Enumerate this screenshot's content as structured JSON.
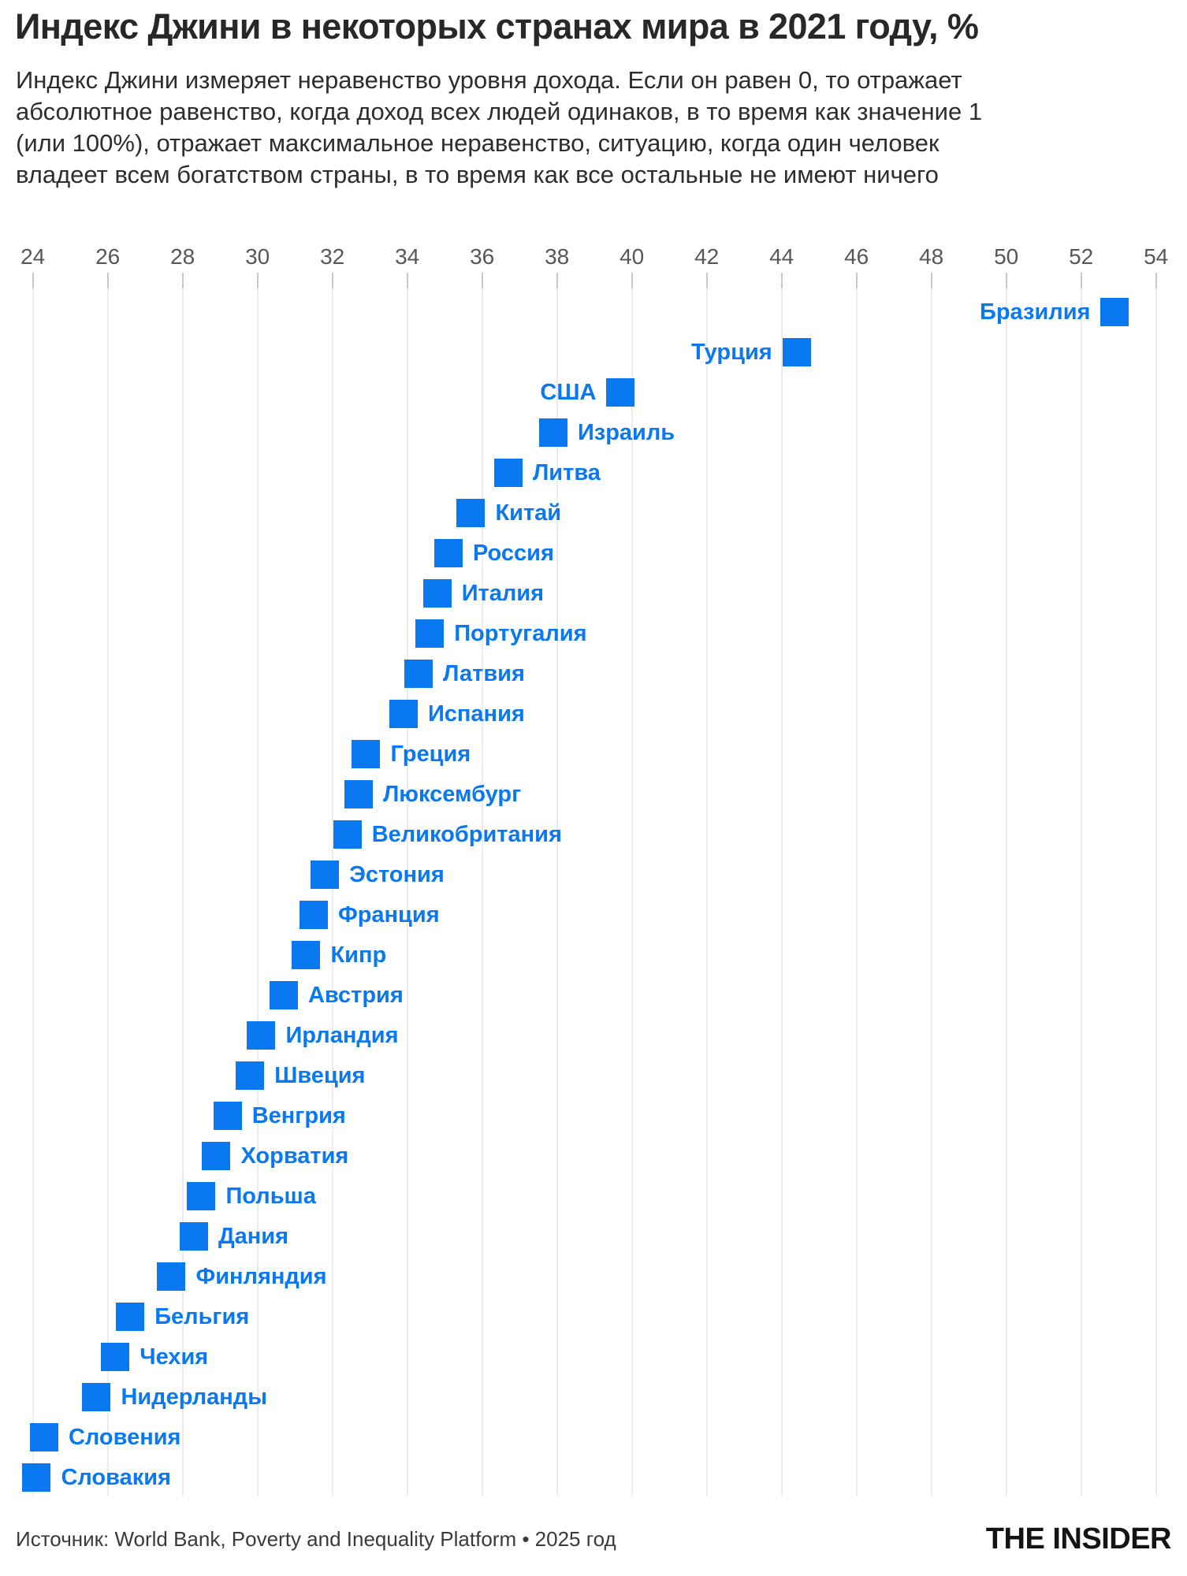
{
  "title": "Индекс Джини в некоторых странах мира в 2021 году, %",
  "subtitle_lines": [
    "Индекс Джини измеряет неравенство уровня дохода. Если он равен 0, то отражает",
    "абсолютное равенство, когда доход всех людей одинаков, в то время как значение 1",
    "(или 100%), отражает максимальное неравенство, ситуацию, когда один человек",
    "владеет всем богатством страны, в то время как все остальные не имеют ничего"
  ],
  "footer": {
    "source": "Источник: World Bank, Poverty and Inequality Platform • 2025 год",
    "logo": "THE INSIDER"
  },
  "colors": {
    "accent": "#0a78f0",
    "grid": "#ececec",
    "tick": "#c9c9c9",
    "tick_label": "#575757",
    "title": "#282828",
    "text": "#2d2d2d"
  },
  "chart_data": {
    "type": "scatter",
    "title": "Индекс Джини в некоторых странах мира в 2021 году, %",
    "xlim": [
      24,
      54
    ],
    "x_ticks": [
      24,
      26,
      28,
      30,
      32,
      34,
      36,
      38,
      40,
      42,
      44,
      46,
      48,
      50,
      52,
      54
    ],
    "grid": true,
    "marker": "square",
    "legend": "none",
    "points": [
      {
        "country": "Бразилия",
        "value": 52.9,
        "label_side": "left"
      },
      {
        "country": "Турция",
        "value": 44.4,
        "label_side": "left"
      },
      {
        "country": "США",
        "value": 39.7,
        "label_side": "left"
      },
      {
        "country": "Израиль",
        "value": 37.9,
        "label_side": "right"
      },
      {
        "country": "Литва",
        "value": 36.7,
        "label_side": "right"
      },
      {
        "country": "Китай",
        "value": 35.7,
        "label_side": "right"
      },
      {
        "country": "Россия",
        "value": 35.1,
        "label_side": "right"
      },
      {
        "country": "Италия",
        "value": 34.8,
        "label_side": "right"
      },
      {
        "country": "Португалия",
        "value": 34.6,
        "label_side": "right"
      },
      {
        "country": "Латвия",
        "value": 34.3,
        "label_side": "right"
      },
      {
        "country": "Испания",
        "value": 33.9,
        "label_side": "right"
      },
      {
        "country": "Греция",
        "value": 32.9,
        "label_side": "right"
      },
      {
        "country": "Люксембург",
        "value": 32.7,
        "label_side": "right"
      },
      {
        "country": "Великобритания",
        "value": 32.4,
        "label_side": "right"
      },
      {
        "country": "Эстония",
        "value": 31.8,
        "label_side": "right"
      },
      {
        "country": "Франция",
        "value": 31.5,
        "label_side": "right"
      },
      {
        "country": "Кипр",
        "value": 31.3,
        "label_side": "right"
      },
      {
        "country": "Австрия",
        "value": 30.7,
        "label_side": "right"
      },
      {
        "country": "Ирландия",
        "value": 30.1,
        "label_side": "right"
      },
      {
        "country": "Швеция",
        "value": 29.8,
        "label_side": "right"
      },
      {
        "country": "Венгрия",
        "value": 29.2,
        "label_side": "right"
      },
      {
        "country": "Хорватия",
        "value": 28.9,
        "label_side": "right"
      },
      {
        "country": "Польша",
        "value": 28.5,
        "label_side": "right"
      },
      {
        "country": "Дания",
        "value": 28.3,
        "label_side": "right"
      },
      {
        "country": "Финляндия",
        "value": 27.7,
        "label_side": "right"
      },
      {
        "country": "Бельгия",
        "value": 26.6,
        "label_side": "right"
      },
      {
        "country": "Чехия",
        "value": 26.2,
        "label_side": "right"
      },
      {
        "country": "Нидерланды",
        "value": 25.7,
        "label_side": "right"
      },
      {
        "country": "Словения",
        "value": 24.3,
        "label_side": "right"
      },
      {
        "country": "Словакия",
        "value": 24.1,
        "label_side": "right"
      }
    ]
  }
}
